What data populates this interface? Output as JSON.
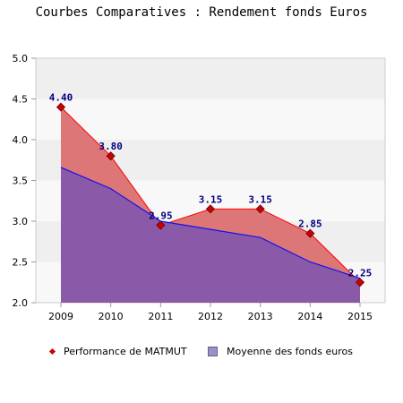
{
  "chart_data": {
    "type": "area",
    "title": "Courbes Comparatives : Rendement fonds Euros",
    "x": [
      "2009",
      "2010",
      "2011",
      "2012",
      "2013",
      "2014",
      "2015"
    ],
    "series": [
      {
        "name": "Performance de MATMUT",
        "values": [
          4.4,
          3.8,
          2.95,
          3.15,
          3.15,
          2.85,
          2.25
        ],
        "labels": [
          "4.40",
          "3.80",
          "2.95",
          "3.15",
          "3.15",
          "2.85",
          "2.25"
        ],
        "line_color": "#ff0000",
        "fill_color": "#dd7777",
        "marker_color": "#cc0000"
      },
      {
        "name": "Moyenne des fonds euros",
        "values": [
          3.66,
          3.4,
          3.0,
          2.9,
          2.8,
          2.5,
          2.3
        ],
        "line_color": "#1111ee",
        "fill_color": "#8a5aa8"
      }
    ],
    "ylim": [
      2.0,
      5.0
    ],
    "yticks": [
      "5.0",
      "4.5",
      "4.0",
      "3.5",
      "3.0",
      "2.5",
      "2.0"
    ],
    "grid": true,
    "legend_position": "bottom",
    "label_color": "#000080"
  }
}
